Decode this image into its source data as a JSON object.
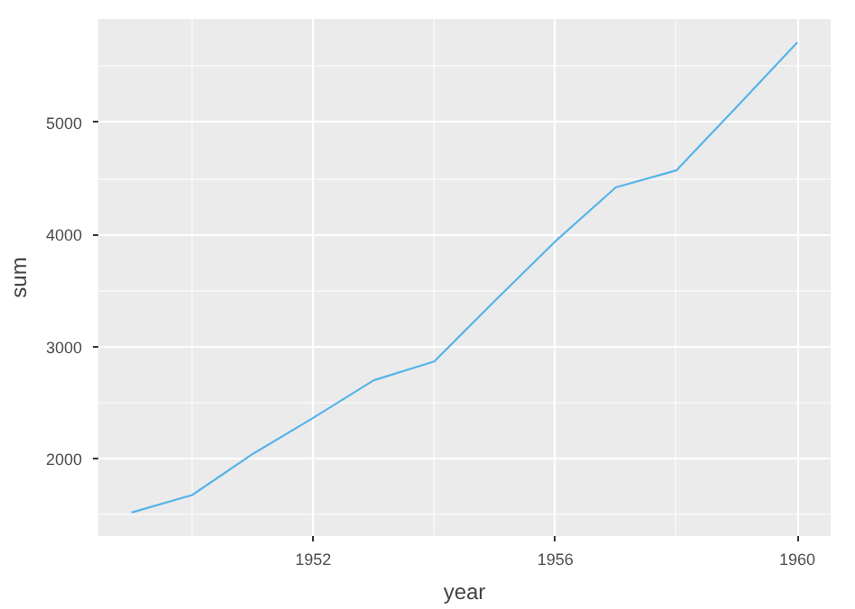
{
  "chart_data": {
    "type": "line",
    "xlabel": "year",
    "ylabel": "sum",
    "x": [
      1949,
      1950,
      1951,
      1952,
      1953,
      1954,
      1955,
      1956,
      1957,
      1958,
      1959,
      1960
    ],
    "series": [
      {
        "color": "#56b4e9",
        "values": [
          1520,
          1676,
          2042,
          2364,
          2700,
          2867,
          3408,
          3939,
          4421,
          4572,
          5140,
          5714
        ]
      }
    ],
    "xlim": [
      1948.45,
      1960.55
    ],
    "ylim": [
      1310.3,
      5923.7
    ],
    "xticks": [
      1952,
      1956,
      1960
    ],
    "yticks": [
      2000,
      3000,
      4000,
      5000
    ],
    "grid": true,
    "line_style": "solid"
  }
}
